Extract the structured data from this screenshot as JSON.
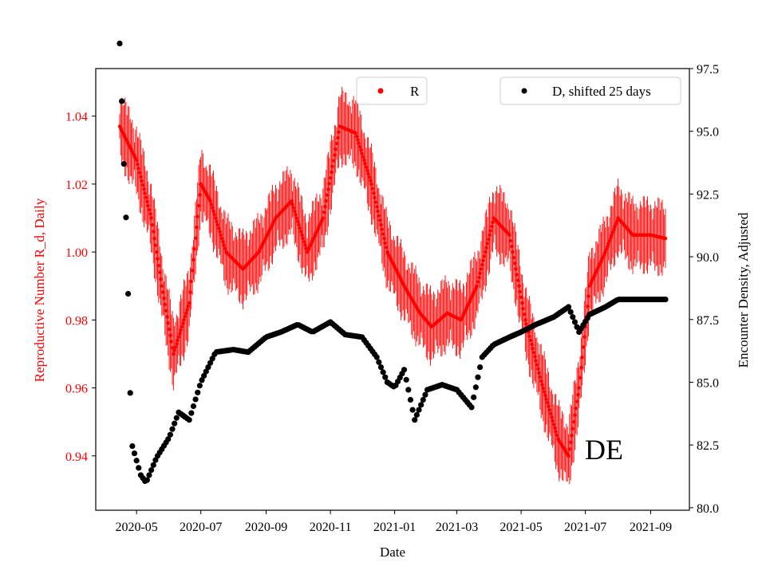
{
  "chart_data": {
    "type": "scatter",
    "x_axis": {
      "label": "Date",
      "start": "2020-04-15",
      "end": "2021-09-15",
      "ticks": [
        {
          "date": "2020-05-01",
          "label": "2020-05"
        },
        {
          "date": "2020-07-01",
          "label": "2020-07"
        },
        {
          "date": "2020-09-01",
          "label": "2020-09"
        },
        {
          "date": "2020-11-01",
          "label": "2020-11"
        },
        {
          "date": "2021-01-01",
          "label": "2021-01"
        },
        {
          "date": "2021-03-01",
          "label": "2021-03"
        },
        {
          "date": "2021-05-01",
          "label": "2021-05"
        },
        {
          "date": "2021-07-01",
          "label": "2021-07"
        },
        {
          "date": "2021-09-01",
          "label": "2021-09"
        }
      ]
    },
    "y_left": {
      "label": "Reproductive Number R_d, Daily",
      "color": "#ff0000",
      "ylim": [
        0.924,
        1.054
      ],
      "ticks": [
        "0.94",
        "0.96",
        "0.98",
        "1.00",
        "1.02",
        "1.04"
      ]
    },
    "y_right": {
      "label": "Encounter Density, Adjusted",
      "color": "#000000",
      "ylim": [
        79.9,
        97.5
      ],
      "ticks": [
        "80.0",
        "82.5",
        "85.0",
        "87.5",
        "90.0",
        "92.5",
        "95.0",
        "97.5"
      ]
    },
    "annotation": "DE",
    "series": [
      {
        "name": "R",
        "color": "#ff0000",
        "axis": "left",
        "error_halfwidth_typical": 0.008,
        "x": [
          "2020-04-15",
          "2020-05-01",
          "2020-05-15",
          "2020-05-25",
          "2020-06-05",
          "2020-06-20",
          "2020-07-01",
          "2020-07-10",
          "2020-07-25",
          "2020-08-10",
          "2020-08-25",
          "2020-09-10",
          "2020-09-25",
          "2020-10-10",
          "2020-10-25",
          "2020-11-10",
          "2020-11-25",
          "2020-12-10",
          "2020-12-25",
          "2021-01-10",
          "2021-01-25",
          "2021-02-05",
          "2021-02-20",
          "2021-03-05",
          "2021-03-20",
          "2021-04-05",
          "2021-04-20",
          "2021-05-05",
          "2021-05-20",
          "2021-06-05",
          "2021-06-15",
          "2021-06-25",
          "2021-07-05",
          "2021-07-20",
          "2021-08-01",
          "2021-08-15",
          "2021-09-01",
          "2021-09-15"
        ],
        "y": [
          1.037,
          1.027,
          1.01,
          0.99,
          0.97,
          0.985,
          1.02,
          1.015,
          1.0,
          0.995,
          1.0,
          1.01,
          1.015,
          1.0,
          1.01,
          1.037,
          1.035,
          1.02,
          1.0,
          0.99,
          0.982,
          0.978,
          0.982,
          0.98,
          0.99,
          1.01,
          1.005,
          0.98,
          0.962,
          0.945,
          0.94,
          0.96,
          0.99,
          1.0,
          1.01,
          1.005,
          1.005,
          1.004
        ]
      },
      {
        "name": "D, shifted 25 days",
        "color": "#000000",
        "axis": "right",
        "x": [
          "2020-04-15",
          "2020-04-17",
          "2020-04-19",
          "2020-04-22",
          "2020-04-26",
          "2020-05-05",
          "2020-05-10",
          "2020-05-20",
          "2020-06-01",
          "2020-06-10",
          "2020-06-20",
          "2020-07-01",
          "2020-07-15",
          "2020-08-01",
          "2020-08-15",
          "2020-09-01",
          "2020-09-15",
          "2020-10-01",
          "2020-10-15",
          "2020-11-01",
          "2020-11-15",
          "2020-12-01",
          "2020-12-15",
          "2020-12-25",
          "2021-01-01",
          "2021-01-10",
          "2021-01-20",
          "2021-02-01",
          "2021-02-15",
          "2021-03-01",
          "2021-03-15",
          "2021-03-25",
          "2021-04-05",
          "2021-04-20",
          "2021-05-01",
          "2021-05-15",
          "2021-06-01",
          "2021-06-15",
          "2021-06-25",
          "2021-07-05",
          "2021-07-20",
          "2021-08-01",
          "2021-08-15",
          "2021-09-01",
          "2021-09-15"
        ],
        "y": [
          98.5,
          96.2,
          93.7,
          90.5,
          82.6,
          81.3,
          81.0,
          82.0,
          82.8,
          83.8,
          83.5,
          85.0,
          86.2,
          86.3,
          86.2,
          86.8,
          87.0,
          87.3,
          87.0,
          87.4,
          86.9,
          86.8,
          86.0,
          85.0,
          84.8,
          85.5,
          83.5,
          84.7,
          84.9,
          84.7,
          84.0,
          86.0,
          86.5,
          86.8,
          87.0,
          87.3,
          87.6,
          88.0,
          87.0,
          87.7,
          88.0,
          88.3,
          88.3,
          88.3,
          88.3
        ]
      }
    ]
  }
}
